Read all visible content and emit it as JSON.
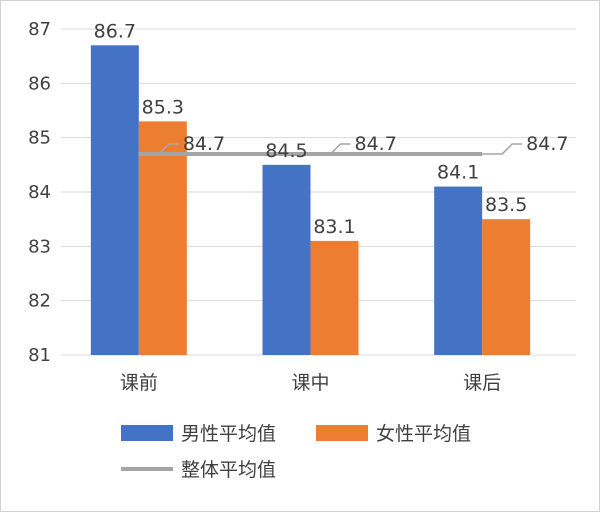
{
  "chart_data": {
    "type": "bar",
    "categories": [
      "课前",
      "课中",
      "课后"
    ],
    "series": [
      {
        "name": "男性平均值",
        "values": [
          86.7,
          84.5,
          84.1
        ],
        "color": "#4472C4"
      },
      {
        "name": "女性平均值",
        "values": [
          85.3,
          83.1,
          83.5
        ],
        "color": "#ED7D31"
      }
    ],
    "line_series": {
      "name": "整体平均值",
      "values": [
        84.7,
        84.7,
        84.7
      ],
      "color": "#A5A5A5"
    },
    "title": "",
    "xlabel": "",
    "ylabel": "",
    "ylim": [
      81,
      87
    ],
    "yticks": [
      81,
      82,
      83,
      84,
      85,
      86,
      87
    ],
    "grid": true,
    "legend": "bottom"
  }
}
